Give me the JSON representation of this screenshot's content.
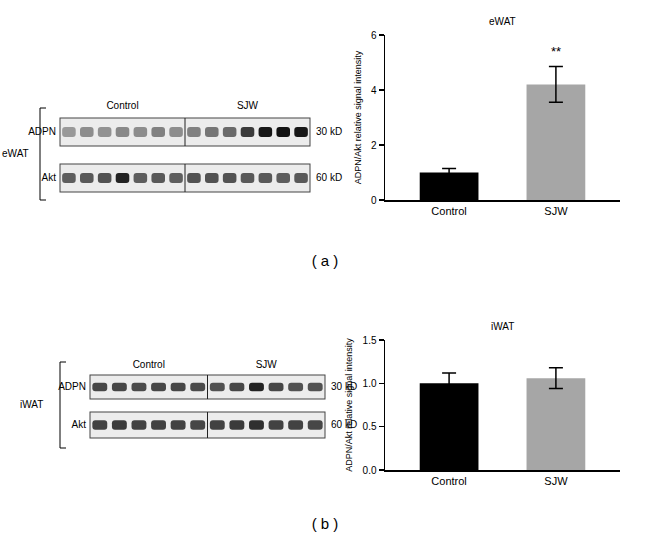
{
  "chart_data": [
    {
      "type": "bar",
      "title": "eWAT",
      "y_label": "ADPN/Akt relative signal intensity",
      "categories": [
        "Control",
        "SJW"
      ],
      "values": [
        1.0,
        4.2
      ],
      "errors": [
        0.15,
        0.65
      ],
      "colors": [
        "#000000",
        "#a6a6a6"
      ],
      "ylim": [
        0,
        6
      ],
      "yticks": [
        0,
        2,
        4,
        6
      ],
      "annotations": [
        {
          "category": "SJW",
          "y": 5.05,
          "text": "**"
        }
      ]
    },
    {
      "type": "bar",
      "title": "iWAT",
      "y_label": "ADPN/Akt relative signal intensity",
      "categories": [
        "Control",
        "SJW"
      ],
      "values": [
        1.0,
        1.06
      ],
      "errors": [
        0.12,
        0.12
      ],
      "colors": [
        "#000000",
        "#a6a6a6"
      ],
      "ylim": [
        0,
        1.5
      ],
      "yticks": [
        {
          "value": 0,
          "label": "0.0"
        },
        {
          "value": 0.5,
          "label": "0.5"
        },
        {
          "value": 1,
          "label": "1.0"
        },
        {
          "value": 1.5,
          "label": "1.5"
        }
      ]
    }
  ],
  "blots": [
    {
      "panel": "( a )",
      "tissue": "eWAT",
      "groups": [
        "Control",
        "SJW"
      ],
      "rows": [
        {
          "label": "ADPN",
          "size": "30 kD",
          "intensities": [
            0.35,
            0.4,
            0.38,
            0.42,
            0.4,
            0.45,
            0.4,
            0.45,
            0.5,
            0.55,
            0.75,
            0.9,
            0.92,
            0.9
          ]
        },
        {
          "label": "Akt",
          "size": "60 kD",
          "intensities": [
            0.6,
            0.62,
            0.65,
            0.85,
            0.6,
            0.62,
            0.6,
            0.65,
            0.65,
            0.65,
            0.62,
            0.62,
            0.6,
            0.62
          ]
        }
      ]
    },
    {
      "panel": "( b )",
      "tissue": "iWAT",
      "groups": [
        "Control",
        "SJW"
      ],
      "rows": [
        {
          "label": "ADPN",
          "size": "30 kD",
          "intensities": [
            0.7,
            0.7,
            0.68,
            0.7,
            0.7,
            0.68,
            0.65,
            0.7,
            0.85,
            0.7,
            0.65,
            0.65
          ]
        },
        {
          "label": "Akt",
          "size": "60 kD",
          "intensities": [
            0.72,
            0.75,
            0.72,
            0.72,
            0.72,
            0.7,
            0.72,
            0.75,
            0.8,
            0.72,
            0.72,
            0.7
          ]
        }
      ]
    }
  ]
}
